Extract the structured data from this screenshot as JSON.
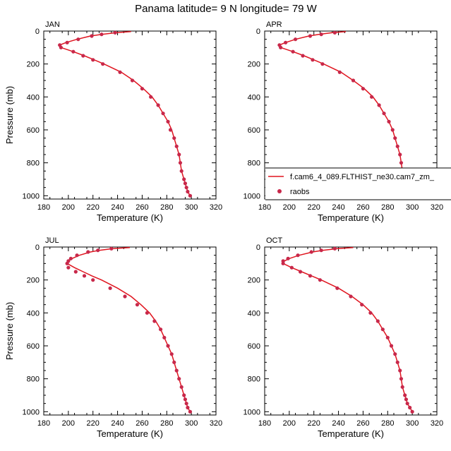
{
  "figure": {
    "title": "Panama  latitude= 9 N longitude= 79 W"
  },
  "legend": {
    "model_label": "f.cam6_4_089.FLTHIST_ne30.cam7_zm_",
    "obs_label": "raobs"
  },
  "colors": {
    "model_line": "#e0141e",
    "obs_marker": "#c8284a"
  },
  "chart_data": [
    {
      "type": "line",
      "panel_label": "JAN",
      "xlabel": "Temperature (K)",
      "ylabel": "Pressure (mb)",
      "xlim": [
        180,
        320
      ],
      "ylim": [
        1020,
        0
      ],
      "xticks": [
        "180",
        "200",
        "220",
        "240",
        "260",
        "280",
        "300",
        "320"
      ],
      "yticks": [
        "0",
        "200",
        "400",
        "600",
        "800",
        "1000"
      ],
      "series": [
        {
          "kind": "line",
          "pressure": [
            3,
            10,
            20,
            30,
            50,
            70,
            85,
            100,
            125,
            150,
            175,
            200,
            250,
            300,
            350,
            400,
            450,
            500,
            550,
            600,
            650,
            700,
            750,
            800,
            850,
            900,
            925,
            950,
            975,
            1000
          ],
          "temperature": [
            251,
            239,
            227,
            218,
            207,
            198,
            193,
            194,
            204,
            213,
            221,
            229,
            243,
            253,
            261,
            268,
            273,
            277,
            281,
            284,
            286,
            288,
            290,
            291,
            292,
            294,
            295,
            296,
            297,
            299
          ]
        },
        {
          "kind": "markers",
          "pressure": [
            10,
            20,
            30,
            50,
            70,
            85,
            100,
            125,
            150,
            175,
            200,
            250,
            300,
            350,
            400,
            450,
            500,
            550,
            600,
            650,
            700,
            750,
            800,
            850,
            900,
            925,
            950,
            975,
            1000
          ],
          "temperature": [
            238,
            227,
            219,
            208,
            199,
            193,
            194,
            204,
            212,
            220,
            228,
            242,
            252,
            260,
            267,
            273,
            277,
            281,
            283,
            286,
            288,
            290,
            291,
            292,
            294,
            295,
            296,
            297,
            299
          ]
        }
      ]
    },
    {
      "type": "line",
      "panel_label": "APR",
      "xlabel": "Temperature (K)",
      "ylabel": "",
      "xlim": [
        180,
        320
      ],
      "ylim": [
        1020,
        0
      ],
      "xticks": [
        "180",
        "200",
        "220",
        "240",
        "260",
        "280",
        "300",
        "320"
      ],
      "yticks": [
        "0",
        "200",
        "400",
        "600",
        "800",
        "1000"
      ],
      "series": [
        {
          "kind": "line",
          "pressure": [
            3,
            10,
            20,
            30,
            50,
            70,
            85,
            100,
            125,
            150,
            175,
            200,
            250,
            300,
            350,
            400,
            450,
            500,
            550,
            600,
            650,
            700,
            750,
            800,
            850,
            900,
            925,
            950,
            975,
            1000
          ],
          "temperature": [
            246,
            235,
            224,
            216,
            205,
            197,
            192,
            193,
            203,
            212,
            220,
            228,
            242,
            252,
            261,
            268,
            273,
            277,
            281,
            284,
            286,
            288,
            290,
            291,
            292,
            294,
            295,
            296,
            298,
            300
          ]
        },
        {
          "kind": "markers",
          "pressure": [
            10,
            20,
            30,
            50,
            70,
            85,
            100,
            125,
            150,
            175,
            200,
            250,
            300,
            350,
            400,
            450,
            500,
            550,
            600,
            650,
            700,
            750,
            800,
            850,
            900,
            925,
            950,
            975,
            1000
          ],
          "temperature": [
            237,
            226,
            217,
            205,
            197,
            192,
            193,
            203,
            211,
            219,
            227,
            241,
            252,
            260,
            267,
            273,
            277,
            281,
            284,
            286,
            288,
            290,
            291,
            292,
            294,
            295,
            296,
            298,
            300
          ]
        }
      ]
    },
    {
      "type": "line",
      "panel_label": "JUL",
      "xlabel": "Temperature (K)",
      "ylabel": "Pressure (mb)",
      "xlim": [
        180,
        320
      ],
      "ylim": [
        1020,
        0
      ],
      "xticks": [
        "180",
        "200",
        "220",
        "240",
        "260",
        "280",
        "300",
        "320"
      ],
      "yticks": [
        "0",
        "200",
        "400",
        "600",
        "800",
        "1000"
      ],
      "series": [
        {
          "kind": "line",
          "pressure": [
            3,
            10,
            20,
            30,
            50,
            70,
            85,
            100,
            125,
            150,
            175,
            200,
            250,
            300,
            350,
            400,
            450,
            500,
            550,
            600,
            650,
            700,
            750,
            800,
            850,
            900,
            925,
            950,
            975,
            1000
          ],
          "temperature": [
            250,
            236,
            225,
            218,
            209,
            203,
            200,
            199,
            205,
            212,
            219,
            227,
            240,
            251,
            259,
            266,
            271,
            275,
            278,
            281,
            284,
            286,
            288,
            290,
            292,
            294,
            295,
            296,
            297,
            299
          ]
        },
        {
          "kind": "markers",
          "pressure": [
            10,
            20,
            30,
            50,
            70,
            85,
            100,
            125,
            150,
            175,
            200,
            250,
            300,
            350,
            400,
            450,
            500,
            550,
            600,
            650,
            700,
            750,
            800,
            850,
            900,
            925,
            950,
            975,
            1000
          ],
          "temperature": [
            235,
            224,
            216,
            207,
            202,
            200,
            199,
            200,
            206,
            213,
            220,
            234,
            246,
            256,
            264,
            270,
            275,
            278,
            281,
            284,
            286,
            288,
            290,
            292,
            294,
            295,
            296,
            297,
            299
          ]
        }
      ]
    },
    {
      "type": "line",
      "panel_label": "OCT",
      "xlabel": "Temperature (K)",
      "ylabel": "",
      "xlim": [
        180,
        320
      ],
      "ylim": [
        1020,
        0
      ],
      "xticks": [
        "180",
        "200",
        "220",
        "240",
        "260",
        "280",
        "300",
        "320"
      ],
      "yticks": [
        "0",
        "200",
        "400",
        "600",
        "800",
        "1000"
      ],
      "series": [
        {
          "kind": "line",
          "pressure": [
            3,
            10,
            20,
            30,
            50,
            70,
            85,
            100,
            125,
            150,
            175,
            200,
            250,
            300,
            350,
            400,
            450,
            500,
            550,
            600,
            650,
            700,
            750,
            800,
            850,
            900,
            925,
            950,
            975,
            1000
          ],
          "temperature": [
            252,
            239,
            227,
            219,
            208,
            200,
            196,
            195,
            202,
            210,
            218,
            226,
            240,
            251,
            260,
            267,
            272,
            276,
            280,
            283,
            286,
            288,
            290,
            291,
            292,
            294,
            295,
            296,
            298,
            300
          ]
        },
        {
          "kind": "markers",
          "pressure": [
            10,
            20,
            30,
            50,
            70,
            85,
            100,
            125,
            150,
            175,
            200,
            250,
            300,
            350,
            400,
            450,
            500,
            550,
            600,
            650,
            700,
            750,
            800,
            850,
            900,
            925,
            950,
            975,
            1000
          ],
          "temperature": [
            237,
            226,
            218,
            207,
            199,
            195,
            195,
            202,
            209,
            217,
            225,
            239,
            250,
            259,
            266,
            272,
            276,
            280,
            283,
            286,
            288,
            290,
            291,
            292,
            294,
            295,
            296,
            298,
            300
          ]
        }
      ]
    }
  ]
}
